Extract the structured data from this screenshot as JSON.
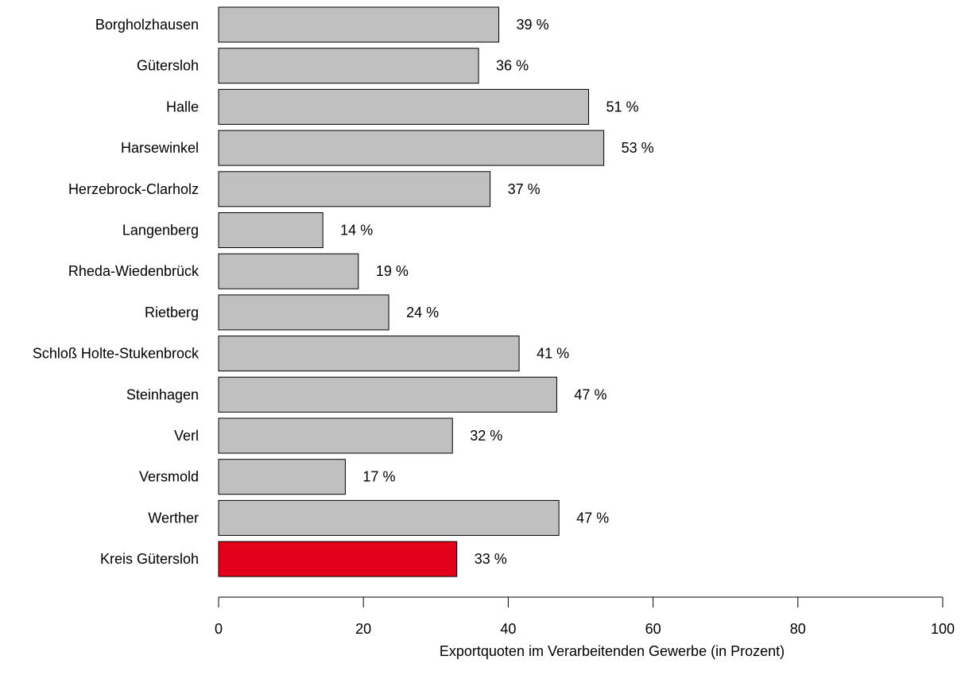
{
  "chart_data": {
    "type": "bar",
    "orientation": "horizontal",
    "categories": [
      "Borgholzhausen",
      "Gütersloh",
      "Halle",
      "Harsewinkel",
      "Herzebrock-Clarholz",
      "Langenberg",
      "Rheda-Wiedenbrück",
      "Rietberg",
      "Schloß Holte-Stukenbrock",
      "Steinhagen",
      "Verl",
      "Versmold",
      "Werther",
      "Kreis Gütersloh"
    ],
    "values": [
      38.7,
      35.9,
      51.1,
      53.2,
      37.5,
      14.4,
      19.3,
      23.5,
      41.5,
      46.7,
      32.3,
      17.5,
      47.0,
      32.9
    ],
    "value_labels": [
      "39 %",
      "36 %",
      "51 %",
      "53 %",
      "37 %",
      "14 %",
      "19 %",
      "24 %",
      "41 %",
      "47 %",
      "32 %",
      "17 %",
      "47 %",
      "33 %"
    ],
    "xlabel": "Exportquoten im Verarbeitenden Gewerbe (in Prozent)",
    "xlim": [
      0,
      100
    ],
    "xticks": [
      0,
      20,
      40,
      60,
      80,
      100
    ],
    "xtick_labels": [
      "0",
      "20",
      "40",
      "60",
      "80",
      "100"
    ],
    "grid": false,
    "colors": {
      "bar": "#c0c0c0",
      "highlight": "#e2001a",
      "stroke": "#000000"
    },
    "highlight_category": "Kreis Gütersloh"
  }
}
